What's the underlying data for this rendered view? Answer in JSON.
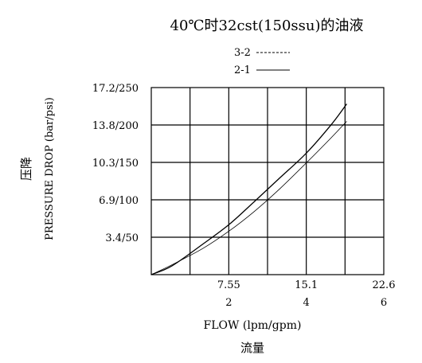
{
  "chart_data": {
    "type": "line",
    "title": "40℃时32cst(150ssu)的油液",
    "xlabel": "FLOW (lpm/gpm)",
    "xlabel_cn": "流量",
    "ylabel": "PRESSURE DROP (bar/psi)",
    "ylabel_cn": "压降",
    "x_ticks_primary": [
      "7.55",
      "15.1",
      "22.6"
    ],
    "x_ticks_secondary": [
      "2",
      "4",
      "6"
    ],
    "y_ticks": [
      "3.4/50",
      "6.9/100",
      "10.3/150",
      "13.8/200",
      "17.2/250"
    ],
    "xlim": [
      0,
      22.6
    ],
    "ylim": [
      0,
      17.2
    ],
    "grid": true,
    "legend_position": "top-center",
    "series": [
      {
        "name": "3-2",
        "style": "dashed",
        "x": [
          0,
          2.0,
          5.0,
          7.55,
          10.0,
          12.5,
          15.1,
          17.5,
          19.0
        ],
        "y": [
          0,
          0.9,
          2.4,
          4.0,
          5.8,
          7.9,
          10.3,
          12.6,
          14.1
        ]
      },
      {
        "name": "2-1",
        "style": "solid",
        "x": [
          0,
          2.0,
          5.0,
          7.55,
          10.0,
          12.5,
          15.1,
          17.5,
          19.0
        ],
        "y": [
          0,
          0.8,
          2.8,
          4.6,
          6.7,
          8.9,
          11.2,
          13.8,
          15.7
        ]
      }
    ]
  }
}
